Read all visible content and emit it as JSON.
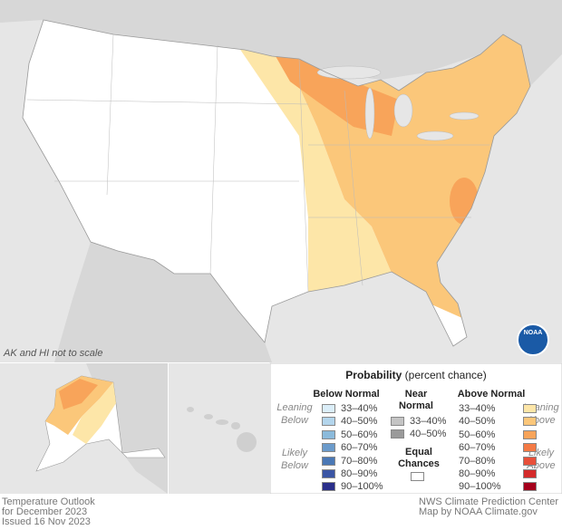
{
  "map": {
    "note": "AK and HI not to scale",
    "logo": "NOAA"
  },
  "legend": {
    "title": "Probability",
    "subtitle": "(percent chance)",
    "below": {
      "heading": "Below Normal",
      "leaning": "Leaning Below",
      "likely": "Likely Below",
      "items": [
        {
          "label": "33–40%",
          "color": "#dbeef9"
        },
        {
          "label": "40–50%",
          "color": "#b3d5ec"
        },
        {
          "label": "50–60%",
          "color": "#8bbadb"
        },
        {
          "label": "60–70%",
          "color": "#6b9bcb"
        },
        {
          "label": "70–80%",
          "color": "#4a78b5"
        },
        {
          "label": "80–90%",
          "color": "#3a55a4"
        },
        {
          "label": "90–100%",
          "color": "#2a2f8a"
        }
      ]
    },
    "near": {
      "heading": "Near Normal",
      "items": [
        {
          "label": "33–40%",
          "color": "#c4c4c4"
        },
        {
          "label": "40–50%",
          "color": "#9a9a9a"
        }
      ]
    },
    "above": {
      "heading": "Above Normal",
      "leaning": "Leaning Above",
      "likely": "Likely Above",
      "items": [
        {
          "label": "33–40%",
          "color": "#fde6a8"
        },
        {
          "label": "40–50%",
          "color": "#fbc77a"
        },
        {
          "label": "50–60%",
          "color": "#f8a45a"
        },
        {
          "label": "60–70%",
          "color": "#f47a45"
        },
        {
          "label": "70–80%",
          "color": "#e8503a"
        },
        {
          "label": "80–90%",
          "color": "#d42a2a"
        },
        {
          "label": "90–100%",
          "color": "#a5001c"
        }
      ]
    },
    "equal": {
      "label": "Equal Chances",
      "color": "#ffffff"
    }
  },
  "footer": {
    "left": [
      "Temperature Outlook",
      "for December 2023",
      "Issued 16 Nov 2023"
    ],
    "right": [
      "NWS Climate Prediction Center",
      "Map by NOAA Climate.gov"
    ]
  }
}
